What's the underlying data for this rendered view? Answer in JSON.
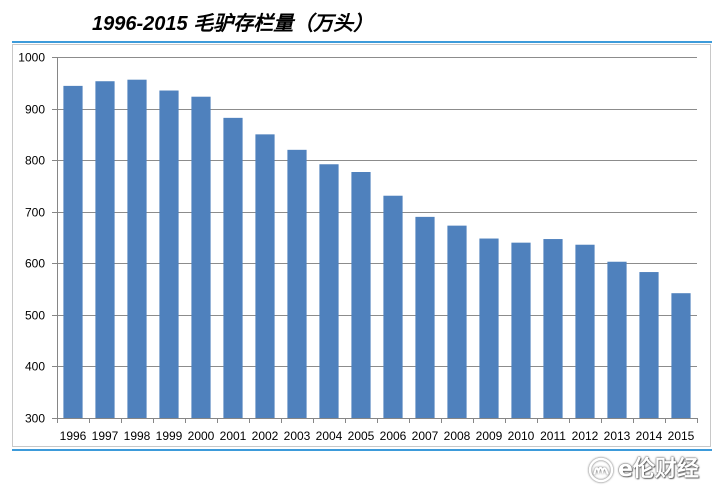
{
  "colors": {
    "bar": "#4F81BD",
    "rule": "#3D9BDA"
  },
  "watermark": {
    "icon": "logo-icon",
    "text": "e伦财经"
  },
  "chart_data": {
    "type": "bar",
    "title": "1996-2015 毛驴存栏量（万头）",
    "xlabel": "",
    "ylabel": "",
    "categories": [
      "1996",
      "1997",
      "1998",
      "1999",
      "2000",
      "2001",
      "2002",
      "2003",
      "2004",
      "2005",
      "2006",
      "2007",
      "2008",
      "2009",
      "2010",
      "2011",
      "2012",
      "2013",
      "2014",
      "2015"
    ],
    "values": [
      944,
      953,
      956,
      935,
      923,
      882,
      850,
      820,
      792,
      777,
      731,
      690,
      673,
      648,
      640,
      647,
      636,
      603,
      583,
      542
    ],
    "ylim": [
      300,
      1000
    ],
    "yticks": [
      300,
      400,
      500,
      600,
      700,
      800,
      900,
      1000
    ],
    "grid": true
  }
}
